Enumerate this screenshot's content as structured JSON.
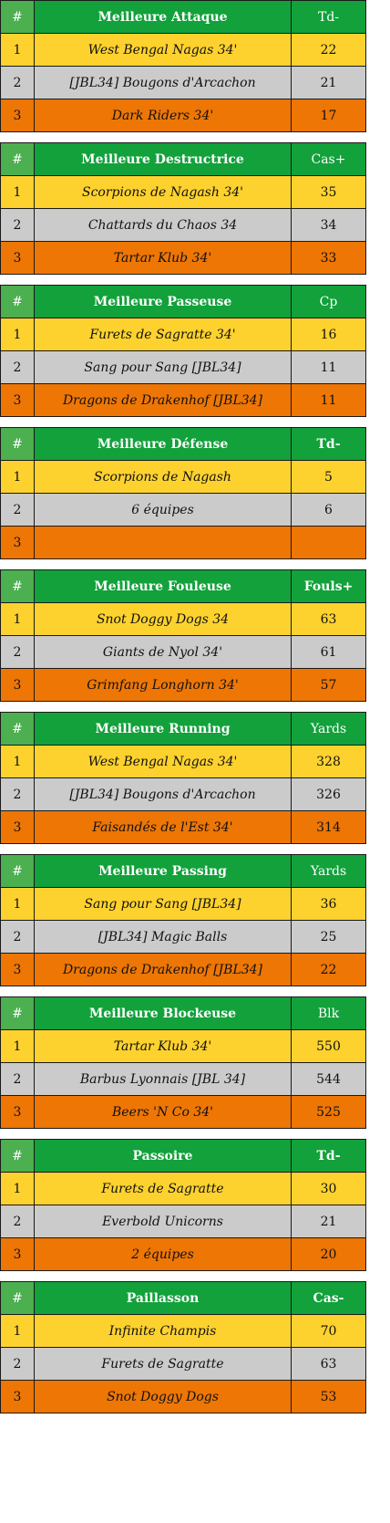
{
  "tables": [
    {
      "title": "Meilleure Attaque",
      "stat": "Td-",
      "stat_bold": false,
      "rows": [
        {
          "rank": "1",
          "team": "West Bengal Nagas 34'",
          "value": "22"
        },
        {
          "rank": "2",
          "team": "[JBL34] Bougons d'Arcachon",
          "value": "21"
        },
        {
          "rank": "3",
          "team": "Dark Riders 34'",
          "value": "17"
        }
      ]
    },
    {
      "title": "Meilleure Destructrice",
      "stat": "Cas+",
      "stat_bold": false,
      "rows": [
        {
          "rank": "1",
          "team": "Scorpions de Nagash 34'",
          "value": "35"
        },
        {
          "rank": "2",
          "team": "Chattards du Chaos 34",
          "value": "34"
        },
        {
          "rank": "3",
          "team": "Tartar Klub 34'",
          "value": "33"
        }
      ]
    },
    {
      "title": "Meilleure Passeuse",
      "stat": "Cp",
      "stat_bold": false,
      "rows": [
        {
          "rank": "1",
          "team": "Furets de Sagratte 34'",
          "value": "16"
        },
        {
          "rank": "2",
          "team": "Sang pour Sang [JBL34]",
          "value": "11"
        },
        {
          "rank": "3",
          "team": "Dragons de Drakenhof [JBL34]",
          "value": "11"
        }
      ]
    },
    {
      "title": "Meilleure Défense",
      "stat": "Td-",
      "stat_bold": true,
      "rows": [
        {
          "rank": "1",
          "team": "Scorpions de Nagash",
          "value": "5"
        },
        {
          "rank": "2",
          "team": "6 équipes",
          "value": "6"
        },
        {
          "rank": "3",
          "team": "",
          "value": ""
        }
      ]
    },
    {
      "title": "Meilleure Fouleuse",
      "stat": "Fouls+",
      "stat_bold": true,
      "rows": [
        {
          "rank": "1",
          "team": "Snot Doggy Dogs 34",
          "value": "63"
        },
        {
          "rank": "2",
          "team": "Giants de Nyol 34'",
          "value": "61"
        },
        {
          "rank": "3",
          "team": "Grimfang Longhorn 34'",
          "value": "57"
        }
      ]
    },
    {
      "title": "Meilleure Running",
      "stat": "Yards",
      "stat_bold": false,
      "rows": [
        {
          "rank": "1",
          "team": "West Bengal Nagas 34'",
          "value": "328"
        },
        {
          "rank": "2",
          "team": "[JBL34] Bougons d'Arcachon",
          "value": "326"
        },
        {
          "rank": "3",
          "team": "Faisandés de l'Est 34'",
          "value": "314"
        }
      ]
    },
    {
      "title": "Meilleure Passing",
      "stat": "Yards",
      "stat_bold": false,
      "rows": [
        {
          "rank": "1",
          "team": "Sang pour Sang [JBL34]",
          "value": "36"
        },
        {
          "rank": "2",
          "team": "[JBL34] Magic Balls",
          "value": "25"
        },
        {
          "rank": "3",
          "team": "Dragons de Drakenhof [JBL34]",
          "value": "22"
        }
      ]
    },
    {
      "title": "Meilleure Blockeuse",
      "stat": "Blk",
      "stat_bold": false,
      "rows": [
        {
          "rank": "1",
          "team": "Tartar Klub 34'",
          "value": "550"
        },
        {
          "rank": "2",
          "team": "Barbus Lyonnais [JBL 34]",
          "value": "544"
        },
        {
          "rank": "3",
          "team": "Beers 'N Co 34'",
          "value": "525"
        }
      ]
    },
    {
      "title": "Passoire",
      "stat": "Td-",
      "stat_bold": true,
      "rows": [
        {
          "rank": "1",
          "team": "Furets de Sagratte",
          "value": "30"
        },
        {
          "rank": "2",
          "team": "Everbold Unicorns",
          "value": "21"
        },
        {
          "rank": "3",
          "team": "2 équipes",
          "value": "20"
        }
      ]
    },
    {
      "title": "Paillasson",
      "stat": "Cas-",
      "stat_bold": true,
      "rows": [
        {
          "rank": "1",
          "team": "Infinite Champis",
          "value": "70"
        },
        {
          "rank": "2",
          "team": "Furets de Sagratte",
          "value": "63"
        },
        {
          "rank": "3",
          "team": "Snot Doggy Dogs",
          "value": "53"
        }
      ]
    }
  ],
  "rank_header": "#",
  "colors": {
    "header": "#12a13b",
    "rank_header": "#4caf50",
    "first": "#fed22e",
    "second": "#cbcbcb",
    "third": "#ed7605"
  }
}
